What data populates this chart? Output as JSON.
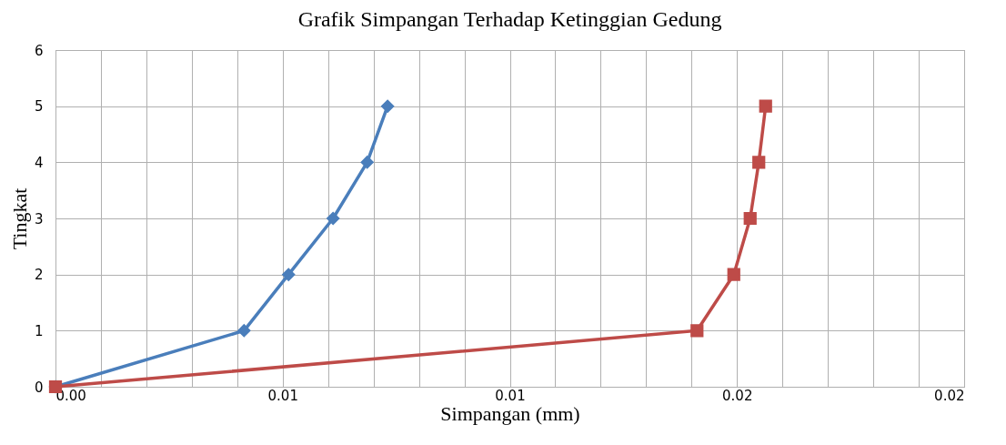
{
  "chart_data": {
    "type": "line",
    "title": "Grafik Simpangan Terhadap Ketinggian Gedung",
    "xlabel": "Simpangan (mm)",
    "ylabel": "Tingkat",
    "xlim": [
      0,
      0.02
    ],
    "ylim": [
      0,
      6
    ],
    "xticks": [
      {
        "value": 0,
        "label": "0.00"
      },
      {
        "value": 0.001,
        "label": null
      },
      {
        "value": 0.002,
        "label": null
      },
      {
        "value": 0.003,
        "label": null
      },
      {
        "value": 0.004,
        "label": null
      },
      {
        "value": 0.005,
        "label": "0.01"
      },
      {
        "value": 0.006,
        "label": null
      },
      {
        "value": 0.007,
        "label": null
      },
      {
        "value": 0.008,
        "label": null
      },
      {
        "value": 0.009,
        "label": null
      },
      {
        "value": 0.01,
        "label": "0.01"
      },
      {
        "value": 0.011,
        "label": null
      },
      {
        "value": 0.012,
        "label": null
      },
      {
        "value": 0.013,
        "label": null
      },
      {
        "value": 0.014,
        "label": null
      },
      {
        "value": 0.015,
        "label": "0.02"
      },
      {
        "value": 0.016,
        "label": null
      },
      {
        "value": 0.017,
        "label": null
      },
      {
        "value": 0.018,
        "label": null
      },
      {
        "value": 0.019,
        "label": null
      },
      {
        "value": 0.02,
        "label": "0.02"
      }
    ],
    "yticks": [
      0,
      1,
      2,
      3,
      4,
      5,
      6
    ],
    "grid": true,
    "series": [
      {
        "color": "#4a7ebb",
        "marker": "diamond",
        "x": [
          0,
          0.00415,
          0.00513,
          0.00611,
          0.00686,
          0.00731
        ],
        "values": [
          0,
          1,
          2,
          3,
          4,
          5
        ]
      },
      {
        "color": "#be4b48",
        "marker": "square",
        "x": [
          0,
          0.01412,
          0.01493,
          0.01529,
          0.01548,
          0.01563
        ],
        "values": [
          0,
          1,
          2,
          3,
          4,
          5
        ]
      }
    ]
  }
}
